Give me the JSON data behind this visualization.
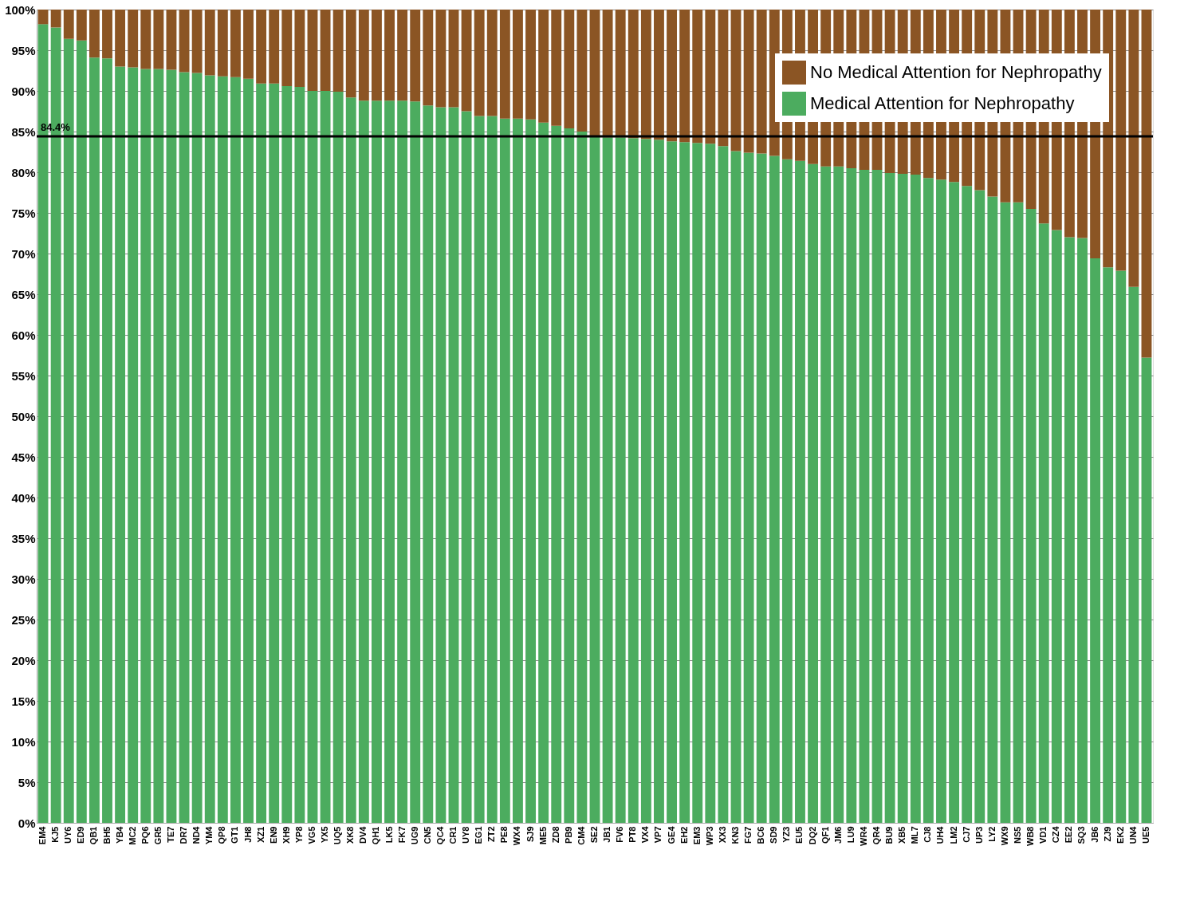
{
  "chart_data": {
    "type": "bar",
    "stacked": true,
    "categories": [
      "EM4",
      "KJ5",
      "UY6",
      "ED9",
      "QB1",
      "BH5",
      "YB4",
      "MC2",
      "PQ6",
      "GR5",
      "TE7",
      "DR7",
      "ND4",
      "YM4",
      "QP8",
      "GT1",
      "JH8",
      "XZ1",
      "EN9",
      "XH9",
      "YP8",
      "VG5",
      "YX5",
      "UQ5",
      "XK8",
      "DV4",
      "QH1",
      "LK5",
      "FK7",
      "UG9",
      "CN5",
      "QC4",
      "CR1",
      "UY8",
      "EG1",
      "ZT2",
      "PE8",
      "WX4",
      "SJ9",
      "ME5",
      "ZD8",
      "PB9",
      "CM4",
      "SE2",
      "JB1",
      "FV6",
      "PT8",
      "VX4",
      "VP7",
      "GE4",
      "EH2",
      "EM3",
      "WP3",
      "XX3",
      "KN3",
      "FG7",
      "BC6",
      "SD9",
      "YZ3",
      "EU5",
      "DQ2",
      "QF1",
      "JM6",
      "LU9",
      "WR4",
      "QR4",
      "BU9",
      "XB5",
      "ML7",
      "CJ8",
      "UH4",
      "LM2",
      "CJ7",
      "UP3",
      "LY2",
      "WX9",
      "NS5",
      "WB8",
      "VD1",
      "CZ4",
      "EE2",
      "SQ3",
      "JB6",
      "ZJ9",
      "EK2",
      "UN4",
      "UE5"
    ],
    "series": [
      {
        "name": "Medical Attention for Nephropathy",
        "color": "#4cac5f",
        "values": [
          98.2,
          97.8,
          96.4,
          96.2,
          94.1,
          94.0,
          93.0,
          92.9,
          92.7,
          92.7,
          92.6,
          92.3,
          92.2,
          91.9,
          91.8,
          91.7,
          91.5,
          90.9,
          90.9,
          90.6,
          90.5,
          90.0,
          90.0,
          89.9,
          89.2,
          88.8,
          88.8,
          88.8,
          88.8,
          88.7,
          88.2,
          88.0,
          88.0,
          87.5,
          86.9,
          86.9,
          86.6,
          86.6,
          86.5,
          86.1,
          85.7,
          85.4,
          85.0,
          84.4,
          84.3,
          84.3,
          84.2,
          84.1,
          84.0,
          83.8,
          83.7,
          83.6,
          83.5,
          83.2,
          82.6,
          82.4,
          82.3,
          82.0,
          81.6,
          81.4,
          81.0,
          80.7,
          80.7,
          80.5,
          80.3,
          80.3,
          79.9,
          79.8,
          79.7,
          79.3,
          79.1,
          78.8,
          78.3,
          77.8,
          77.0,
          76.3,
          76.3,
          75.5,
          73.7,
          72.9,
          72.0,
          71.9,
          69.4,
          68.3,
          67.9,
          65.9,
          57.2
        ]
      },
      {
        "name": "No Medical Attention for Nephropathy",
        "color": "#8b5524",
        "values": [
          1.8,
          2.2,
          3.6,
          3.8,
          5.9,
          6.0,
          7.0,
          7.1,
          7.3,
          7.3,
          7.4,
          7.7,
          7.8,
          8.1,
          8.2,
          8.3,
          8.5,
          9.1,
          9.1,
          9.4,
          9.5,
          10.0,
          10.0,
          10.1,
          10.8,
          11.2,
          11.2,
          11.2,
          11.2,
          11.3,
          11.8,
          12.0,
          12.0,
          12.5,
          13.1,
          13.1,
          13.4,
          13.4,
          13.5,
          13.9,
          14.3,
          14.6,
          15.0,
          15.6,
          15.7,
          15.7,
          15.8,
          15.9,
          16.0,
          16.2,
          16.3,
          16.4,
          16.5,
          16.8,
          17.4,
          17.6,
          17.7,
          18.0,
          18.4,
          18.6,
          19.0,
          19.3,
          19.3,
          19.5,
          19.7,
          19.7,
          20.1,
          20.2,
          20.3,
          20.7,
          20.9,
          21.2,
          21.7,
          22.2,
          23.0,
          23.7,
          23.7,
          24.5,
          26.3,
          27.1,
          28.0,
          28.1,
          30.6,
          31.7,
          32.1,
          34.1,
          42.8
        ]
      }
    ],
    "ylim": [
      0,
      100
    ],
    "yticks": [
      {
        "value": 0,
        "label": "0%"
      },
      {
        "value": 5,
        "label": "5%"
      },
      {
        "value": 10,
        "label": "10%"
      },
      {
        "value": 15,
        "label": "15%"
      },
      {
        "value": 20,
        "label": "20%"
      },
      {
        "value": 25,
        "label": "25%"
      },
      {
        "value": 30,
        "label": "30%"
      },
      {
        "value": 35,
        "label": "35%"
      },
      {
        "value": 40,
        "label": "40%"
      },
      {
        "value": 45,
        "label": "45%"
      },
      {
        "value": 50,
        "label": "50%"
      },
      {
        "value": 55,
        "label": "55%"
      },
      {
        "value": 60,
        "label": "60%"
      },
      {
        "value": 65,
        "label": "65%"
      },
      {
        "value": 70,
        "label": "70%"
      },
      {
        "value": 75,
        "label": "75%"
      },
      {
        "value": 80,
        "label": "80%"
      },
      {
        "value": 85,
        "label": "85%"
      },
      {
        "value": 90,
        "label": "90%"
      },
      {
        "value": 95,
        "label": "95%"
      },
      {
        "value": 100,
        "label": "100%"
      }
    ],
    "ref_lines": [
      {
        "axis": "y",
        "value": 84.4,
        "label": "84.4%",
        "color": "#000000"
      }
    ],
    "grid": "y",
    "legend": "top right"
  }
}
